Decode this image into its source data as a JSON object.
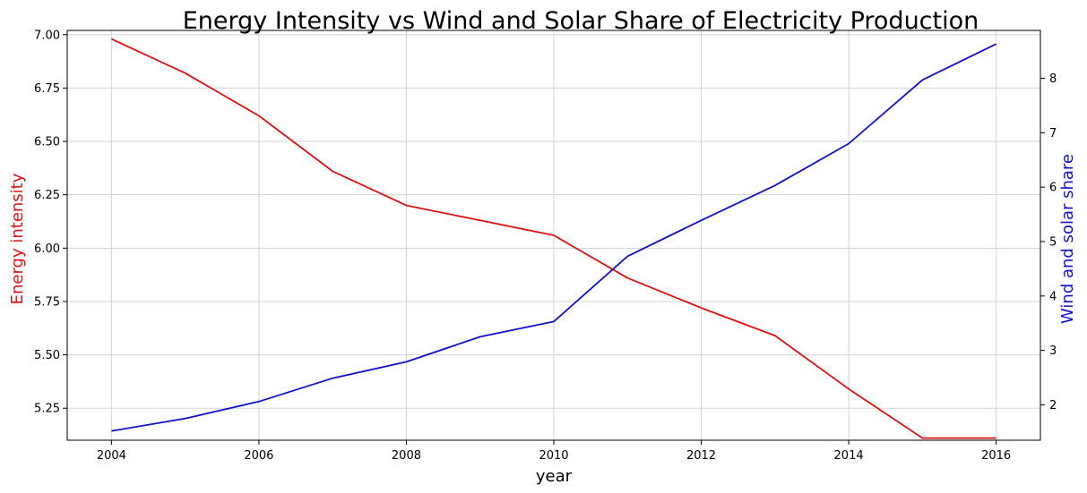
{
  "chart_data": {
    "type": "line",
    "title": "Energy Intensity vs Wind and Solar Share of Electricity Production",
    "xlabel": "year",
    "x": [
      2004,
      2005,
      2006,
      2007,
      2008,
      2009,
      2010,
      2011,
      2012,
      2013,
      2014,
      2015,
      2016
    ],
    "xlim": [
      2003.4,
      2016.6
    ],
    "xticks": [
      2004,
      2006,
      2008,
      2010,
      2012,
      2014,
      2016
    ],
    "grid": true,
    "y_left": {
      "label": "Energy intensity",
      "color": "#dd1111",
      "lim": [
        5.1,
        7.02
      ],
      "ticks": [
        "5.25",
        "5.50",
        "5.75",
        "6.00",
        "6.25",
        "6.50",
        "6.75",
        "7.00"
      ]
    },
    "y_right": {
      "label": "Wind and solar share",
      "color": "#1111cc",
      "lim": [
        1.35,
        8.88
      ],
      "ticks": [
        "2",
        "3",
        "4",
        "5",
        "6",
        "7",
        "8"
      ]
    },
    "series": [
      {
        "axis": "left",
        "color": "#dd1111",
        "values": [
          6.98,
          6.82,
          6.62,
          6.36,
          6.2,
          6.13,
          6.06,
          5.86,
          5.72,
          5.59,
          5.34,
          5.11,
          5.11
        ]
      },
      {
        "axis": "right",
        "color": "#1111cc",
        "values": [
          1.52,
          1.75,
          2.06,
          2.49,
          2.79,
          3.25,
          3.53,
          4.73,
          5.39,
          6.03,
          6.8,
          7.97,
          8.63
        ]
      }
    ]
  }
}
